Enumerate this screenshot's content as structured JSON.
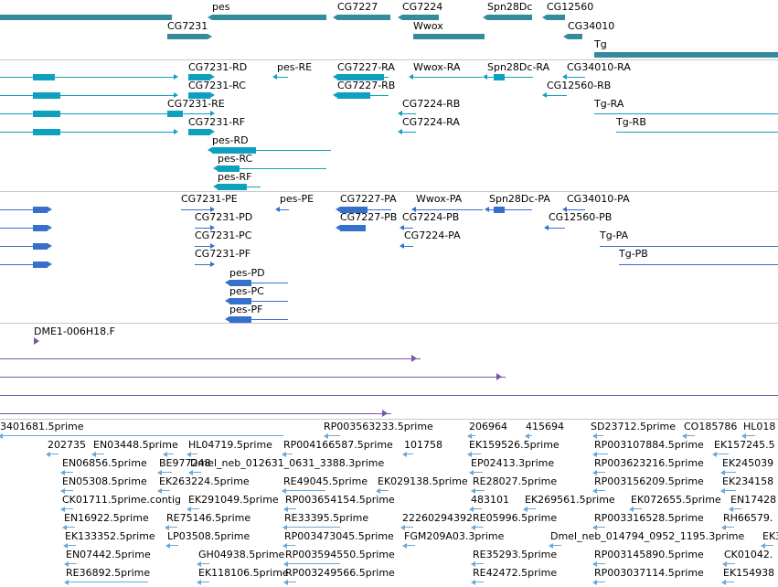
{
  "colors": {
    "gene": "#338b9b",
    "mrna": "#0fa0c0",
    "cds": "#3670cc",
    "clone": "#7a55a5",
    "est": "#6aa8d8"
  },
  "genes": {
    "labels": [
      "pes",
      "CG7227",
      "CG7224",
      "Spn28Dc",
      "CG12560",
      "CG7231",
      "Wwox",
      "CG34010",
      "Tg"
    ],
    "features": [
      {
        "x1": 0,
        "x2": 188,
        "y": 16,
        "h": 6,
        "dir": "none"
      },
      {
        "x1": 232,
        "x2": 357,
        "y": 16,
        "h": 6,
        "dir": "left"
      },
      {
        "x1": 369,
        "x2": 427,
        "y": 16,
        "h": 6,
        "dir": "left"
      },
      {
        "x1": 440,
        "x2": 480,
        "y": 16,
        "h": 6,
        "dir": "left"
      },
      {
        "x1": 533,
        "x2": 582,
        "y": 16,
        "h": 6,
        "dir": "left"
      },
      {
        "x1": 598,
        "x2": 618,
        "y": 16,
        "h": 6,
        "dir": "left"
      },
      {
        "x1": 183,
        "x2": 227,
        "y": 37,
        "h": 6,
        "dir": "right"
      },
      {
        "x1": 452,
        "x2": 530,
        "y": 37,
        "h": 6,
        "dir": "none"
      },
      {
        "x1": 621,
        "x2": 637,
        "y": 37,
        "h": 6,
        "dir": "left"
      },
      {
        "x1": 650,
        "x2": 851,
        "y": 57,
        "h": 6,
        "dir": "none"
      }
    ],
    "label_pos": [
      [
        232,
        2
      ],
      [
        369,
        2
      ],
      [
        440,
        2
      ],
      [
        533,
        2
      ],
      [
        598,
        2
      ],
      [
        183,
        23
      ],
      [
        452,
        23
      ],
      [
        621,
        23
      ],
      [
        650,
        43
      ]
    ]
  },
  "transcripts": {
    "labels": [
      "CG7231-RD",
      "pes-RE",
      "CG7227-RA",
      "Wwox-RA",
      "Spn28Dc-RA",
      "CG34010-RA",
      "CG7231-RC",
      "CG7227-RB",
      "CG12560-RB",
      "CG7231-RE",
      "CG7224-RB",
      "Tg-RA",
      "CG7231-RF",
      "CG7224-RA",
      "Tg-RB",
      "pes-RD",
      "pes-RC",
      "pes-RF"
    ],
    "label_pos": [
      [
        206,
        68
      ],
      [
        303,
        68
      ],
      [
        369,
        68
      ],
      [
        452,
        68
      ],
      [
        533,
        68
      ],
      [
        620,
        68
      ],
      [
        206,
        88
      ],
      [
        369,
        88
      ],
      [
        598,
        88
      ],
      [
        183,
        108
      ],
      [
        440,
        108
      ],
      [
        650,
        108
      ],
      [
        206,
        128
      ],
      [
        440,
        128
      ],
      [
        674,
        128
      ],
      [
        232,
        148
      ],
      [
        238,
        168
      ],
      [
        238,
        188
      ]
    ],
    "rows": [
      {
        "y": 84,
        "line": [
          0,
          190
        ],
        "blocks": [
          [
            36,
            60
          ]
        ],
        "arrow": "right"
      },
      {
        "y": 104,
        "line": [
          0,
          190
        ],
        "blocks": [
          [
            36,
            66
          ]
        ],
        "arrow": "right"
      },
      {
        "y": 124,
        "line": [
          0,
          190
        ],
        "blocks": [
          [
            36,
            66
          ]
        ],
        "arrow": "right"
      },
      {
        "y": 144,
        "line": [
          0,
          190
        ],
        "blocks": [
          [
            36,
            66
          ]
        ],
        "arrow": "right"
      },
      {
        "y": 84,
        "line": [
          206,
          230
        ],
        "blocks": [
          [
            206,
            230
          ]
        ],
        "arrow": "right"
      },
      {
        "y": 104,
        "line": [
          206,
          230
        ],
        "blocks": [
          [
            206,
            230
          ]
        ],
        "arrow": "right"
      },
      {
        "y": 124,
        "line": [
          183,
          230
        ],
        "blocks": [
          [
            183,
            200
          ]
        ],
        "arrow": "right"
      },
      {
        "y": 144,
        "line": [
          206,
          230
        ],
        "blocks": [
          [
            206,
            230
          ]
        ],
        "arrow": "right"
      },
      {
        "y": 84,
        "line": [
          303,
          315
        ],
        "blocks": [],
        "arrow": "left"
      },
      {
        "y": 84,
        "line": [
          369,
          425
        ],
        "blocks": [
          [
            369,
            420
          ]
        ],
        "arrow": "left"
      },
      {
        "y": 104,
        "line": [
          369,
          425
        ],
        "blocks": [
          [
            369,
            405
          ]
        ],
        "arrow": "left"
      },
      {
        "y": 84,
        "line": [
          452,
          528
        ],
        "blocks": [],
        "arrow": "left"
      },
      {
        "y": 84,
        "line": [
          533,
          583
        ],
        "blocks": [
          [
            540,
            552
          ]
        ],
        "arrow": "left"
      },
      {
        "y": 84,
        "line": [
          620,
          640
        ],
        "blocks": [],
        "arrow": "left"
      },
      {
        "y": 104,
        "line": [
          598,
          620
        ],
        "blocks": [],
        "arrow": "left"
      },
      {
        "y": 124,
        "line": [
          440,
          455
        ],
        "blocks": [],
        "arrow": "left"
      },
      {
        "y": 144,
        "line": [
          440,
          455
        ],
        "blocks": [],
        "arrow": "left"
      },
      {
        "y": 124,
        "line": [
          650,
          851
        ],
        "blocks": [],
        "arrow": "right"
      },
      {
        "y": 144,
        "line": [
          674,
          851
        ],
        "blocks": [],
        "arrow": "right"
      },
      {
        "y": 164,
        "line": [
          232,
          362
        ],
        "blocks": [
          [
            232,
            280
          ]
        ],
        "arrow": "left"
      },
      {
        "y": 184,
        "line": [
          238,
          357
        ],
        "blocks": [
          [
            238,
            262
          ]
        ],
        "arrow": "left"
      },
      {
        "y": 204,
        "line": [
          238,
          285
        ],
        "blocks": [
          [
            238,
            270
          ]
        ],
        "arrow": "left"
      }
    ]
  },
  "cds": {
    "labels": [
      "CG7231-PE",
      "pes-PE",
      "CG7227-PA",
      "Wwox-PA",
      "Spn28Dc-PA",
      "CG34010-PA",
      "CG7231-PD",
      "CG7227-PB",
      "CG7224-PB",
      "CG12560-PB",
      "CG7231-PC",
      "CG7224-PA",
      "Tg-PA",
      "CG7231-PF",
      "Tg-PB",
      "pes-PD",
      "pes-PC",
      "pes-PF"
    ],
    "label_pos": [
      [
        198,
        212
      ],
      [
        306,
        212
      ],
      [
        372,
        212
      ],
      [
        455,
        212
      ],
      [
        535,
        212
      ],
      [
        620,
        212
      ],
      [
        213,
        232
      ],
      [
        372,
        232
      ],
      [
        440,
        232
      ],
      [
        600,
        232
      ],
      [
        213,
        252
      ],
      [
        442,
        252
      ],
      [
        656,
        252
      ],
      [
        213,
        272
      ],
      [
        677,
        272
      ],
      [
        251,
        293
      ],
      [
        251,
        313
      ],
      [
        251,
        333
      ]
    ],
    "rows": [
      {
        "y": 229,
        "line": [
          0,
          52
        ],
        "blocks": [
          [
            36,
            52
          ]
        ],
        "arrow": "right"
      },
      {
        "y": 249,
        "line": [
          0,
          52
        ],
        "blocks": [
          [
            36,
            52
          ]
        ],
        "arrow": "right"
      },
      {
        "y": 269,
        "line": [
          0,
          52
        ],
        "blocks": [
          [
            36,
            52
          ]
        ],
        "arrow": "right"
      },
      {
        "y": 289,
        "line": [
          0,
          52
        ],
        "blocks": [
          [
            36,
            52
          ]
        ],
        "arrow": "right"
      },
      {
        "y": 229,
        "line": [
          198,
          230
        ],
        "blocks": [],
        "arrow": "right"
      },
      {
        "y": 249,
        "line": [
          213,
          230
        ],
        "blocks": [],
        "arrow": "right"
      },
      {
        "y": 269,
        "line": [
          213,
          230
        ],
        "blocks": [],
        "arrow": "right"
      },
      {
        "y": 289,
        "line": [
          213,
          230
        ],
        "blocks": [],
        "arrow": "right"
      },
      {
        "y": 229,
        "line": [
          306,
          316
        ],
        "blocks": [],
        "arrow": "left"
      },
      {
        "y": 229,
        "line": [
          372,
          428
        ],
        "blocks": [
          [
            372,
            402
          ]
        ],
        "arrow": "left"
      },
      {
        "y": 249,
        "line": [
          372,
          400
        ],
        "blocks": [
          [
            372,
            400
          ]
        ],
        "arrow": "left"
      },
      {
        "y": 229,
        "line": [
          455,
          528
        ],
        "blocks": [],
        "arrow": "left"
      },
      {
        "y": 229,
        "line": [
          535,
          582
        ],
        "blocks": [
          [
            540,
            552
          ]
        ],
        "arrow": "left"
      },
      {
        "y": 229,
        "line": [
          620,
          640
        ],
        "blocks": [],
        "arrow": "left"
      },
      {
        "y": 249,
        "line": [
          600,
          618
        ],
        "blocks": [],
        "arrow": "left"
      },
      {
        "y": 249,
        "line": [
          442,
          452
        ],
        "blocks": [],
        "arrow": "left"
      },
      {
        "y": 269,
        "line": [
          442,
          452
        ],
        "blocks": [],
        "arrow": "left"
      },
      {
        "y": 269,
        "line": [
          656,
          851
        ],
        "blocks": [],
        "arrow": "right"
      },
      {
        "y": 289,
        "line": [
          677,
          851
        ],
        "blocks": [],
        "arrow": "right"
      },
      {
        "y": 309,
        "line": [
          251,
          315
        ],
        "blocks": [
          [
            251,
            275
          ]
        ],
        "arrow": "left"
      },
      {
        "y": 329,
        "line": [
          251,
          315
        ],
        "blocks": [
          [
            251,
            275
          ]
        ],
        "arrow": "left"
      },
      {
        "y": 349,
        "line": [
          251,
          315
        ],
        "blocks": [
          [
            251,
            275
          ]
        ],
        "arrow": "left"
      }
    ]
  },
  "clones": {
    "labels": [
      "DME1-006H18.F"
    ],
    "label_pos": [
      [
        37,
        357
      ]
    ],
    "rows": [
      {
        "y": 373,
        "x1": 37,
        "x2": 43,
        "arrow": "right",
        "line": false
      },
      {
        "y": 392,
        "x1": 0,
        "x2": 460,
        "arrow": "right",
        "line": true
      },
      {
        "y": 412,
        "x1": 0,
        "x2": 553,
        "arrow": "right",
        "line": true
      },
      {
        "y": 432,
        "x1": 0,
        "x2": 851,
        "arrow": "none",
        "line": true
      },
      {
        "y": 452,
        "x1": 0,
        "x2": 428,
        "arrow": "right",
        "line": true
      }
    ]
  },
  "ests": {
    "labels": [
      "3401681.5prime",
      "RP003563233.5prime",
      "206964",
      "415694",
      "SD23712.5prime",
      "CO185786",
      "HL018",
      "202735",
      "EN03448.5prime",
      "HL04719.5prime",
      "RP004166587.5prime",
      "101758",
      "EK159526.5prime",
      "RP003107884.5prime",
      "EK157245.5",
      "EN06856.5prime",
      "BE977248",
      "Dmel_neb_012631_0631_3388.3prime",
      "EP02413.3prime",
      "RP003623216.5prime",
      "EK245039",
      "EN05308.5prime",
      "EK263224.5prime",
      "RE49045.5prime",
      "EK029138.5prime",
      "RE28027.5prime",
      "RP003156209.5prime",
      "EK234158",
      "CK01711.5prime.contig",
      "EK291049.5prime",
      "RP003654154.5prime",
      "483101",
      "EK269561.5prime",
      "EK072655.5prime",
      "EN17428",
      "EN16922.5prime",
      "RE75146.5prime",
      "RE33395.5prime",
      "22260294392",
      "RE05996.5prime",
      "RP003316528.5prime",
      "RH66579.",
      "EK133352.5prime",
      "LP03508.5prime",
      "RP003473045.5prime",
      "FGM209A03.3prime",
      "Dmel_neb_014794_0952_1195.3prime",
      "EK3",
      "EN07442.5prime",
      "GH04938.5prime",
      "RP003594550.5prime",
      "RE35293.5prime",
      "RP003145890.5prime",
      "CK01042.",
      "RE36892.5prime",
      "EK118106.5prime",
      "RP003249566.5prime",
      "RE42472.5prime",
      "RP003037114.5prime",
      "EK154938"
    ],
    "label_pos": [
      [
        0,
        461
      ],
      [
        354,
        461
      ],
      [
        513,
        461
      ],
      [
        575,
        461
      ],
      [
        646,
        461
      ],
      [
        748,
        461
      ],
      [
        813,
        461
      ],
      [
        52,
        481
      ],
      [
        102,
        481
      ],
      [
        206,
        481
      ],
      [
        310,
        481
      ],
      [
        442,
        481
      ],
      [
        513,
        481
      ],
      [
        650,
        481
      ],
      [
        781,
        481
      ],
      [
        68,
        501
      ],
      [
        174,
        501
      ],
      [
        208,
        501
      ],
      [
        515,
        501
      ],
      [
        650,
        501
      ],
      [
        790,
        501
      ],
      [
        68,
        521
      ],
      [
        174,
        521
      ],
      [
        310,
        521
      ],
      [
        413,
        521
      ],
      [
        517,
        521
      ],
      [
        650,
        521
      ],
      [
        790,
        521
      ],
      [
        68,
        541
      ],
      [
        206,
        541
      ],
      [
        312,
        541
      ],
      [
        515,
        541
      ],
      [
        574,
        541
      ],
      [
        690,
        541
      ],
      [
        799,
        541
      ],
      [
        70,
        561
      ],
      [
        182,
        561
      ],
      [
        311,
        561
      ],
      [
        440,
        561
      ],
      [
        517,
        561
      ],
      [
        650,
        561
      ],
      [
        791,
        561
      ],
      [
        71,
        581
      ],
      [
        183,
        581
      ],
      [
        311,
        581
      ],
      [
        442,
        581
      ],
      [
        602,
        581
      ],
      [
        834,
        581
      ],
      [
        72,
        601
      ],
      [
        217,
        601
      ],
      [
        312,
        601
      ],
      [
        517,
        601
      ],
      [
        650,
        601
      ],
      [
        792,
        601
      ],
      [
        72,
        621
      ],
      [
        217,
        621
      ],
      [
        312,
        621
      ],
      [
        517,
        621
      ],
      [
        650,
        621
      ],
      [
        791,
        621
      ]
    ],
    "bars": [
      [
        0,
        310,
        477
      ],
      [
        356,
        372,
        477
      ],
      [
        513,
        520,
        477
      ],
      [
        576,
        582,
        477
      ],
      [
        650,
        660,
        477
      ],
      [
        748,
        760,
        477
      ],
      [
        813,
        826,
        477
      ],
      [
        52,
        64,
        497
      ],
      [
        102,
        114,
        497
      ],
      [
        180,
        190,
        497
      ],
      [
        206,
        216,
        497
      ],
      [
        310,
        320,
        497
      ],
      [
        442,
        452,
        497
      ],
      [
        513,
        526,
        497
      ],
      [
        650,
        665,
        497
      ],
      [
        781,
        797,
        497
      ],
      [
        68,
        80,
        517
      ],
      [
        174,
        188,
        517
      ],
      [
        208,
        220,
        517
      ],
      [
        515,
        528,
        517
      ],
      [
        650,
        662,
        517
      ],
      [
        790,
        805,
        517
      ],
      [
        68,
        80,
        537
      ],
      [
        174,
        186,
        537
      ],
      [
        310,
        356,
        537
      ],
      [
        413,
        425,
        537
      ],
      [
        517,
        530,
        537
      ],
      [
        650,
        662,
        537
      ],
      [
        790,
        805,
        537
      ],
      [
        68,
        80,
        557
      ],
      [
        206,
        218,
        557
      ],
      [
        312,
        324,
        557
      ],
      [
        515,
        527,
        557
      ],
      [
        574,
        586,
        557
      ],
      [
        690,
        702,
        557
      ],
      [
        799,
        811,
        557
      ],
      [
        70,
        82,
        577
      ],
      [
        182,
        194,
        577
      ],
      [
        311,
        372,
        577
      ],
      [
        440,
        452,
        577
      ],
      [
        517,
        529,
        577
      ],
      [
        650,
        662,
        577
      ],
      [
        791,
        803,
        577
      ],
      [
        71,
        83,
        597
      ],
      [
        183,
        195,
        597
      ],
      [
        311,
        323,
        597
      ],
      [
        442,
        454,
        597
      ],
      [
        602,
        614,
        597
      ],
      [
        834,
        846,
        597
      ],
      [
        72,
        84,
        617
      ],
      [
        217,
        229,
        617
      ],
      [
        312,
        372,
        617
      ],
      [
        517,
        529,
        617
      ],
      [
        650,
        662,
        617
      ],
      [
        792,
        804,
        617
      ],
      [
        72,
        162,
        637
      ],
      [
        217,
        229,
        637
      ],
      [
        312,
        324,
        637
      ],
      [
        517,
        529,
        637
      ],
      [
        650,
        662,
        637
      ],
      [
        791,
        803,
        637
      ]
    ]
  }
}
